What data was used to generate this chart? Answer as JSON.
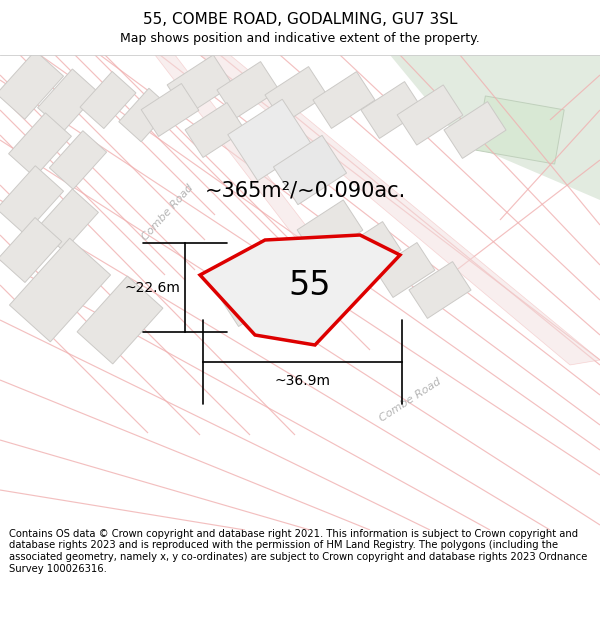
{
  "title": "55, COMBE ROAD, GODALMING, GU7 3SL",
  "subtitle": "Map shows position and indicative extent of the property.",
  "area_label": "~365m²/~0.090ac.",
  "property_number": "55",
  "dim_horizontal": "~36.9m",
  "dim_vertical": "~22.6m",
  "road_label_nw": "Combe Road",
  "road_label_se": "Combe Road",
  "copyright_text": "Contains OS data © Crown copyright and database right 2021. This information is subject to Crown copyright and database rights 2023 and is reproduced with the permission of HM Land Registry. The polygons (including the associated geometry, namely x, y co-ordinates) are subject to Crown copyright and database rights 2023 Ordnance Survey 100026316.",
  "map_bg": "#f7f5f2",
  "road_stroke": "#f0b0b0",
  "road_fill": "#f5e8e8",
  "building_fill": "#e8e6e3",
  "building_edge": "#cccac7",
  "property_stroke": "#dd0000",
  "property_fill": "#f0f0f0",
  "green_fill": "#e2ebe0",
  "green_rect_fill": "#d8e8d4",
  "title_fontsize": 11,
  "subtitle_fontsize": 9,
  "area_fontsize": 15,
  "number_fontsize": 24,
  "dim_fontsize": 10,
  "road_label_fontsize": 8,
  "copyright_fontsize": 7.2
}
